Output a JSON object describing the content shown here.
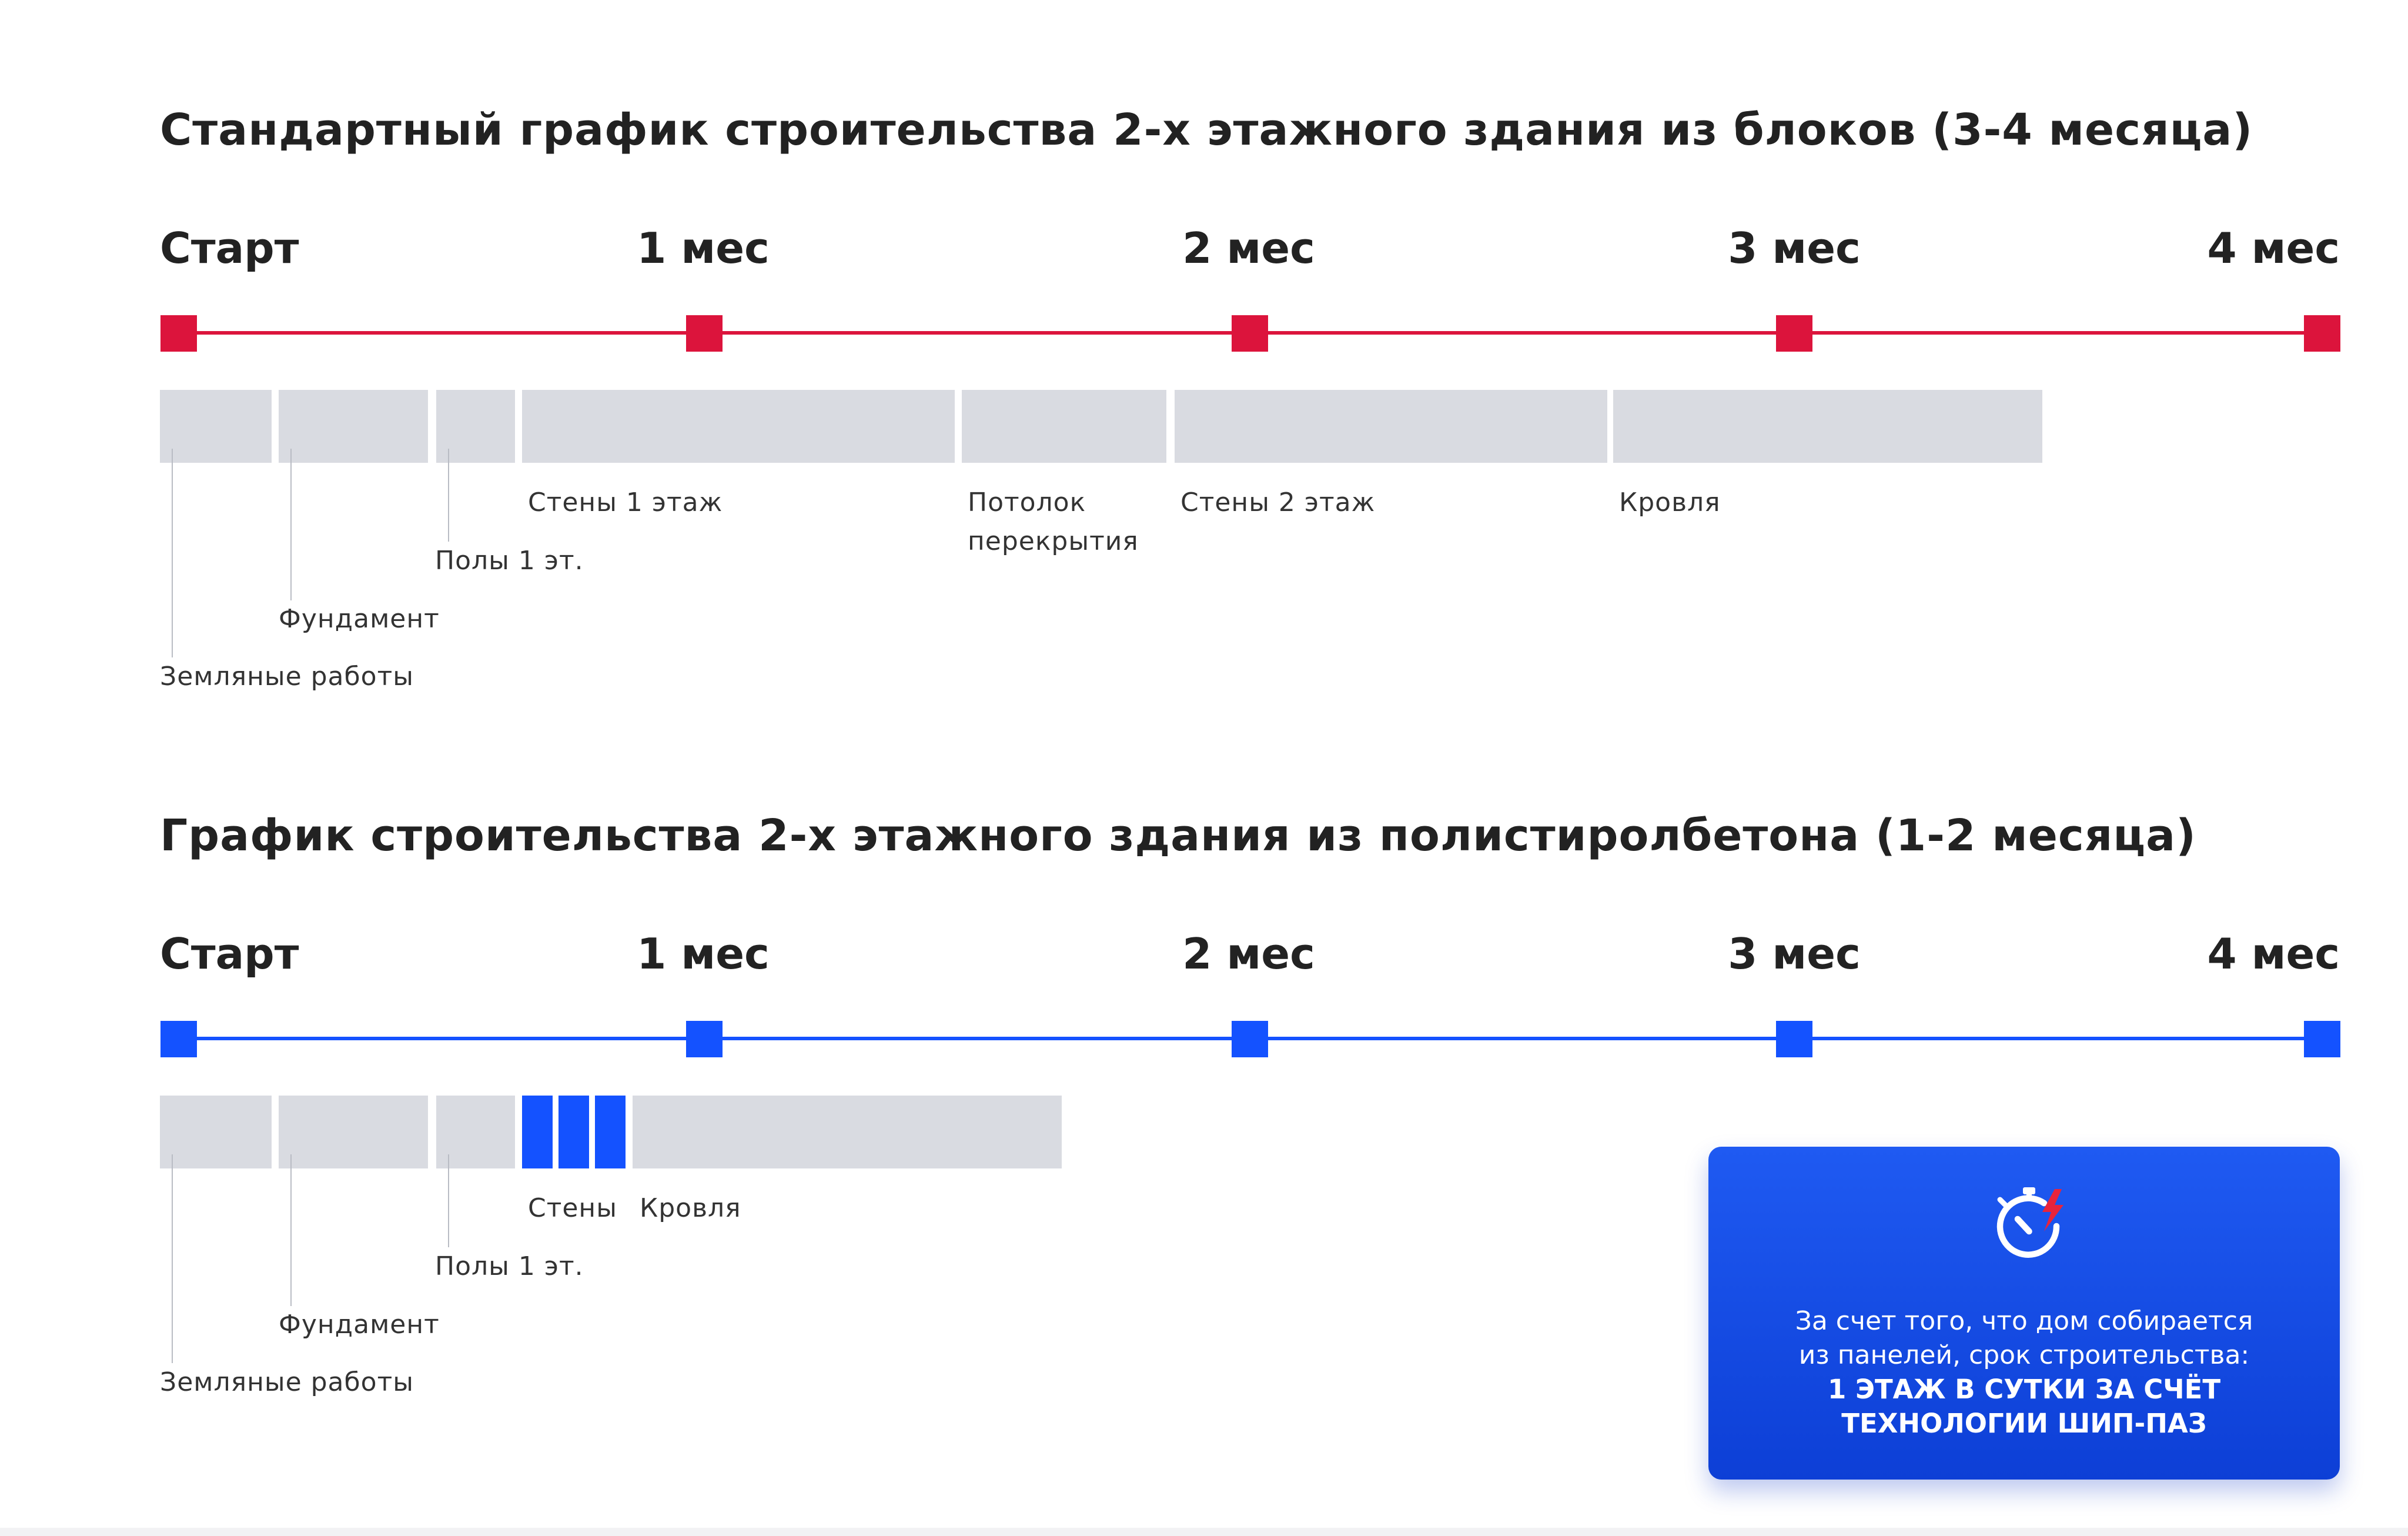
{
  "theme": {
    "standard_color": "#dc143c",
    "foam_color": "#1452ff",
    "bar_color": "#d9dbe1"
  },
  "standard": {
    "title": "Стандартный график строительства 2-х этажного здания из блоков (3-4 месяца)",
    "milestones": [
      "Старт",
      "1 мес",
      "2 мес",
      "3 мес",
      "4 мес"
    ],
    "phases": [
      {
        "label": "Земляные работы"
      },
      {
        "label": "Фундамент"
      },
      {
        "label": "Полы 1 эт."
      },
      {
        "label": "Стены 1 этаж"
      },
      {
        "label": "Потолок перекрытия"
      },
      {
        "label": "Стены 2 этаж"
      },
      {
        "label": "Кровля"
      }
    ]
  },
  "foam": {
    "title": "График строительства 2-х этажного здания из полистиролбетона (1-2 месяца)",
    "milestones": [
      "Старт",
      "1 мес",
      "2 мес",
      "3 мес",
      "4 мес"
    ],
    "phases": [
      {
        "label": "Земляные работы"
      },
      {
        "label": "Фундамент"
      },
      {
        "label": "Полы 1 эт."
      },
      {
        "label": "Стены"
      },
      {
        "label": "Кровля"
      }
    ]
  },
  "callout": {
    "icon": "stopwatch-lightning-icon",
    "line1": "За счет того, что дом собирается",
    "line2": "из панелей, срок строительства:",
    "bold1": "1 ЭТАЖ В СУТКИ ЗА СЧЁТ",
    "bold2": "ТЕХНОЛОГИИ ШИП-ПАЗ"
  }
}
